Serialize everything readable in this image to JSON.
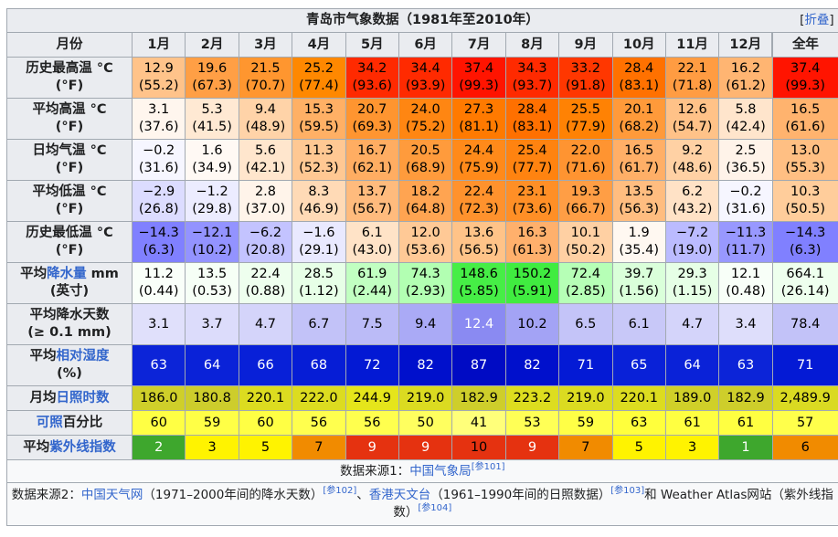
{
  "title": "青岛市气象数据（1981年至2010年）",
  "collapse": {
    "bracket_left": "[",
    "label": "折叠",
    "bracket_right": "]"
  },
  "header": {
    "month_label": "月份",
    "months": [
      "1月",
      "2月",
      "3月",
      "4月",
      "5月",
      "6月",
      "7月",
      "8月",
      "9月",
      "10月",
      "11月",
      "12月"
    ],
    "year_label": "全年"
  },
  "rows": [
    {
      "label_lines": [
        [
          "历史最高温 °C"
        ],
        [
          "(°F)"
        ]
      ],
      "top": [
        "12.9",
        "19.6",
        "21.5",
        "25.2",
        "34.2",
        "34.4",
        "37.4",
        "34.3",
        "33.2",
        "28.4",
        "22.1",
        "16.2",
        "37.4"
      ],
      "bottom": [
        "(55.2)",
        "(67.3)",
        "(70.7)",
        "(77.4)",
        "(93.6)",
        "(93.9)",
        "(99.3)",
        "(93.7)",
        "(91.8)",
        "(83.1)",
        "(71.8)",
        "(61.2)",
        "(99.3)"
      ],
      "colors": [
        "#ffc38a",
        "#ff9f45",
        "#ff962f",
        "#ff8800",
        "#ff2a00",
        "#ff2a00",
        "#ff1400",
        "#ff2a00",
        "#ff3700",
        "#ff7100",
        "#ff9c42",
        "#ffb572",
        "#ff1400"
      ],
      "text_colors": [
        "#000000",
        "#000000",
        "#000000",
        "#000000",
        "#000000",
        "#000000",
        "#000000",
        "#000000",
        "#000000",
        "#000000",
        "#000000",
        "#000000",
        "#000000"
      ]
    },
    {
      "label_lines": [
        [
          "平均高温 °C"
        ],
        [
          "(°F)"
        ]
      ],
      "top": [
        "3.1",
        "5.3",
        "9.4",
        "15.3",
        "20.7",
        "24.0",
        "27.3",
        "28.4",
        "25.5",
        "20.1",
        "12.6",
        "5.8",
        "16.5"
      ],
      "bottom": [
        "(37.6)",
        "(41.5)",
        "(48.9)",
        "(59.5)",
        "(69.3)",
        "(75.2)",
        "(81.1)",
        "(83.1)",
        "(77.9)",
        "(68.2)",
        "(54.7)",
        "(42.4)",
        "(61.6)"
      ],
      "colors": [
        "#fff6ee",
        "#ffe9d3",
        "#ffd3a8",
        "#ffb065",
        "#ff9530",
        "#ff8612",
        "#ff7a00",
        "#ff7000",
        "#ff8204",
        "#ff9a3a",
        "#ffc288",
        "#ffe5cc",
        "#ffb36e"
      ],
      "text_colors": [
        "#000000",
        "#000000",
        "#000000",
        "#000000",
        "#000000",
        "#000000",
        "#000000",
        "#000000",
        "#000000",
        "#000000",
        "#000000",
        "#000000",
        "#000000"
      ]
    },
    {
      "label_lines": [
        [
          "日均气温 °C"
        ],
        [
          "(°F)"
        ]
      ],
      "top": [
        "−0.2",
        "1.6",
        "5.6",
        "11.3",
        "16.7",
        "20.5",
        "24.4",
        "25.4",
        "22.0",
        "16.5",
        "9.2",
        "2.5",
        "13.0"
      ],
      "bottom": [
        "(31.6)",
        "(34.9)",
        "(42.1)",
        "(52.3)",
        "(62.1)",
        "(68.9)",
        "(75.9)",
        "(77.7)",
        "(71.6)",
        "(61.7)",
        "(48.6)",
        "(36.5)",
        "(55.3)"
      ],
      "colors": [
        "#f6f6ff",
        "#fff9f4",
        "#ffe6cd",
        "#ffc893",
        "#ffad62",
        "#ff9b3c",
        "#ff8a1a",
        "#ff8310",
        "#ff9431",
        "#ffaf67",
        "#ffd1a4",
        "#fff3e9",
        "#ffbf83"
      ],
      "text_colors": [
        "#000000",
        "#000000",
        "#000000",
        "#000000",
        "#000000",
        "#000000",
        "#000000",
        "#000000",
        "#000000",
        "#000000",
        "#000000",
        "#000000",
        "#000000"
      ]
    },
    {
      "label_lines": [
        [
          "平均低温 °C"
        ],
        [
          "(°F)"
        ]
      ],
      "top": [
        "−2.9",
        "−1.2",
        "2.8",
        "8.3",
        "13.7",
        "18.2",
        "22.4",
        "23.1",
        "19.3",
        "13.5",
        "6.2",
        "−0.2",
        "10.3"
      ],
      "bottom": [
        "(26.8)",
        "(29.8)",
        "(37.0)",
        "(46.9)",
        "(56.7)",
        "(64.8)",
        "(72.3)",
        "(73.6)",
        "(66.7)",
        "(56.3)",
        "(43.2)",
        "(31.6)",
        "(50.5)"
      ],
      "colors": [
        "#dcdcff",
        "#ececff",
        "#fff4ea",
        "#ffdab6",
        "#ffbb7d",
        "#ffa451",
        "#ff922d",
        "#ff8f26",
        "#ff9e45",
        "#ffbd80",
        "#ffe2c6",
        "#f6f6ff",
        "#ffcd9b"
      ],
      "text_colors": [
        "#000000",
        "#000000",
        "#000000",
        "#000000",
        "#000000",
        "#000000",
        "#000000",
        "#000000",
        "#000000",
        "#000000",
        "#000000",
        "#000000",
        "#000000"
      ]
    },
    {
      "label_lines": [
        [
          "历史最低温 °C"
        ],
        [
          "(°F)"
        ]
      ],
      "top": [
        "−14.3",
        "−12.1",
        "−6.2",
        "−1.6",
        "6.1",
        "12.0",
        "13.6",
        "16.3",
        "10.1",
        "1.9",
        "−7.2",
        "−11.3",
        "−14.3"
      ],
      "bottom": [
        "(6.3)",
        "(10.2)",
        "(20.8)",
        "(29.1)",
        "(43.0)",
        "(53.6)",
        "(56.5)",
        "(61.3)",
        "(50.2)",
        "(35.4)",
        "(19.0)",
        "(11.7)",
        "(6.3)"
      ],
      "colors": [
        "#8080ff",
        "#9393ff",
        "#c3c3ff",
        "#e9e9ff",
        "#ffe3c7",
        "#ffc996",
        "#ffc388",
        "#ffb06c",
        "#ffd0a3",
        "#fff8f1",
        "#bbbbff",
        "#9898ff",
        "#8080ff"
      ],
      "text_colors": [
        "#000000",
        "#000000",
        "#000000",
        "#000000",
        "#000000",
        "#000000",
        "#000000",
        "#000000",
        "#000000",
        "#000000",
        "#000000",
        "#000000",
        "#000000"
      ]
    },
    {
      "label_lines": [
        [
          "平均",
          {
            "link": "降水量"
          },
          " mm"
        ],
        [
          "(英寸)"
        ]
      ],
      "top": [
        "11.2",
        "13.5",
        "22.4",
        "28.5",
        "61.9",
        "74.3",
        "148.6",
        "150.2",
        "72.4",
        "39.7",
        "29.3",
        "12.1",
        "664.1"
      ],
      "bottom": [
        "(0.44)",
        "(0.53)",
        "(0.88)",
        "(1.12)",
        "(2.44)",
        "(2.93)",
        "(5.85)",
        "(5.91)",
        "(2.85)",
        "(1.56)",
        "(1.15)",
        "(0.48)",
        "(26.14)"
      ],
      "colors": [
        "#f9fff9",
        "#f6fff6",
        "#eeffee",
        "#e7ffe7",
        "#c1ffc1",
        "#b2ffb2",
        "#46ee46",
        "#40ec40",
        "#b6ffb6",
        "#daffda",
        "#e6ffe6",
        "#f8fff8",
        "#eeffee"
      ],
      "text_colors": [
        "#000000",
        "#000000",
        "#000000",
        "#000000",
        "#000000",
        "#000000",
        "#000000",
        "#000000",
        "#000000",
        "#000000",
        "#000000",
        "#000000",
        "#000000"
      ]
    },
    {
      "label_lines": [
        [
          "平均降水天数"
        ],
        [
          "(≥ 0.1 mm)"
        ]
      ],
      "top": [
        "3.1",
        "3.7",
        "4.7",
        "6.7",
        "7.5",
        "9.4",
        "12.4",
        "10.2",
        "6.5",
        "6.1",
        "4.7",
        "3.4",
        "78.4"
      ],
      "bottom": [],
      "colors": [
        "#e0e0fb",
        "#dcdcfb",
        "#d4d4fa",
        "#c2c2f8",
        "#bbbbf7",
        "#aaaaf6",
        "#8a8af2",
        "#a3a3f5",
        "#c4c4f8",
        "#c8c8f8",
        "#d4d4fa",
        "#dedefb",
        "#c2c2f8"
      ],
      "text_colors": [
        "#000000",
        "#000000",
        "#000000",
        "#000000",
        "#000000",
        "#000000",
        "#ffffff",
        "#000000",
        "#000000",
        "#000000",
        "#000000",
        "#000000",
        "#000000"
      ]
    },
    {
      "label_lines": [
        [
          "平均",
          {
            "link": "相对湿度"
          }
        ],
        [
          "(%)"
        ]
      ],
      "top": [
        "63",
        "64",
        "66",
        "68",
        "72",
        "82",
        "87",
        "82",
        "71",
        "65",
        "64",
        "63",
        "71"
      ],
      "bottom": [],
      "colors": [
        "#0c24d8",
        "#0a22d8",
        "#0820d8",
        "#061dd6",
        "#0319d4",
        "#0010cc",
        "#000bc4",
        "#0010cc",
        "#041ad5",
        "#0921d8",
        "#0a22d8",
        "#0c24d8",
        "#041ad5"
      ],
      "text_colors": [
        "#ffffff",
        "#ffffff",
        "#ffffff",
        "#ffffff",
        "#ffffff",
        "#ffffff",
        "#ffffff",
        "#ffffff",
        "#ffffff",
        "#ffffff",
        "#ffffff",
        "#ffffff",
        "#ffffff"
      ]
    },
    {
      "label_lines": [
        [
          "月均",
          {
            "link": "日照时数"
          }
        ]
      ],
      "top": [
        "186.0",
        "180.8",
        "220.1",
        "222.0",
        "244.9",
        "219.0",
        "182.9",
        "223.2",
        "219.0",
        "220.1",
        "189.0",
        "182.9",
        "2,489.9"
      ],
      "bottom": [],
      "colors": [
        "#cfcf2a",
        "#cdcd2c",
        "#dcdc20",
        "#dcdc20",
        "#e5e51b",
        "#dbdb21",
        "#cece2b",
        "#dddd1f",
        "#dbdb21",
        "#dcdc20",
        "#d0d029",
        "#cece2b",
        "#dada22"
      ],
      "text_colors": [
        "#000000",
        "#000000",
        "#000000",
        "#000000",
        "#000000",
        "#000000",
        "#000000",
        "#000000",
        "#000000",
        "#000000",
        "#000000",
        "#000000",
        "#000000"
      ]
    },
    {
      "label_lines": [
        [
          {
            "link": "可照"
          },
          "百分比"
        ]
      ],
      "top": [
        "60",
        "59",
        "60",
        "56",
        "56",
        "50",
        "41",
        "53",
        "59",
        "63",
        "61",
        "61",
        "57"
      ],
      "bottom": [],
      "colors": [
        "#ffff44",
        "#ffff46",
        "#ffff44",
        "#ffff4e",
        "#ffff4e",
        "#ffff5f",
        "#ffff7a",
        "#ffff56",
        "#ffff46",
        "#ffff3c",
        "#ffff41",
        "#ffff41",
        "#ffff4b"
      ],
      "text_colors": [
        "#000000",
        "#000000",
        "#000000",
        "#000000",
        "#000000",
        "#000000",
        "#000000",
        "#000000",
        "#000000",
        "#000000",
        "#000000",
        "#000000",
        "#000000"
      ]
    },
    {
      "label_lines": [
        [
          "平均",
          {
            "link": "紫外线指数"
          }
        ]
      ],
      "top": [
        "2",
        "3",
        "5",
        "7",
        "9",
        "9",
        "10",
        "9",
        "7",
        "5",
        "3",
        "1",
        "6"
      ],
      "bottom": [],
      "colors": [
        "#3ea72d",
        "#fff300",
        "#fff300",
        "#f18b00",
        "#e53210",
        "#e53210",
        "#e53210",
        "#e53210",
        "#f18b00",
        "#fff300",
        "#fff300",
        "#3ea72d",
        "#f18b00"
      ],
      "text_colors": [
        "#ffffff",
        "#000000",
        "#000000",
        "#000000",
        "#ffffff",
        "#ffffff",
        "#000000",
        "#ffffff",
        "#000000",
        "#000000",
        "#000000",
        "#ffffff",
        "#000000"
      ]
    }
  ],
  "sources": {
    "line1": {
      "prefix": "数据来源1：",
      "link": "中国气象局",
      "ref": "[参101]"
    },
    "line2": {
      "prefix": "数据来源2：",
      "link1": "中国天气网",
      "text1": "（1971–2000年间的降水天数）",
      "ref1": "[参102]",
      "sep": "、",
      "link2": "香港天文台",
      "text2": "（1961–1990年间的日照数据）",
      "ref2": "[参103]",
      "text3": "和 Weather Atlas网站（紫外线指数）",
      "ref3": "[参104]"
    }
  }
}
